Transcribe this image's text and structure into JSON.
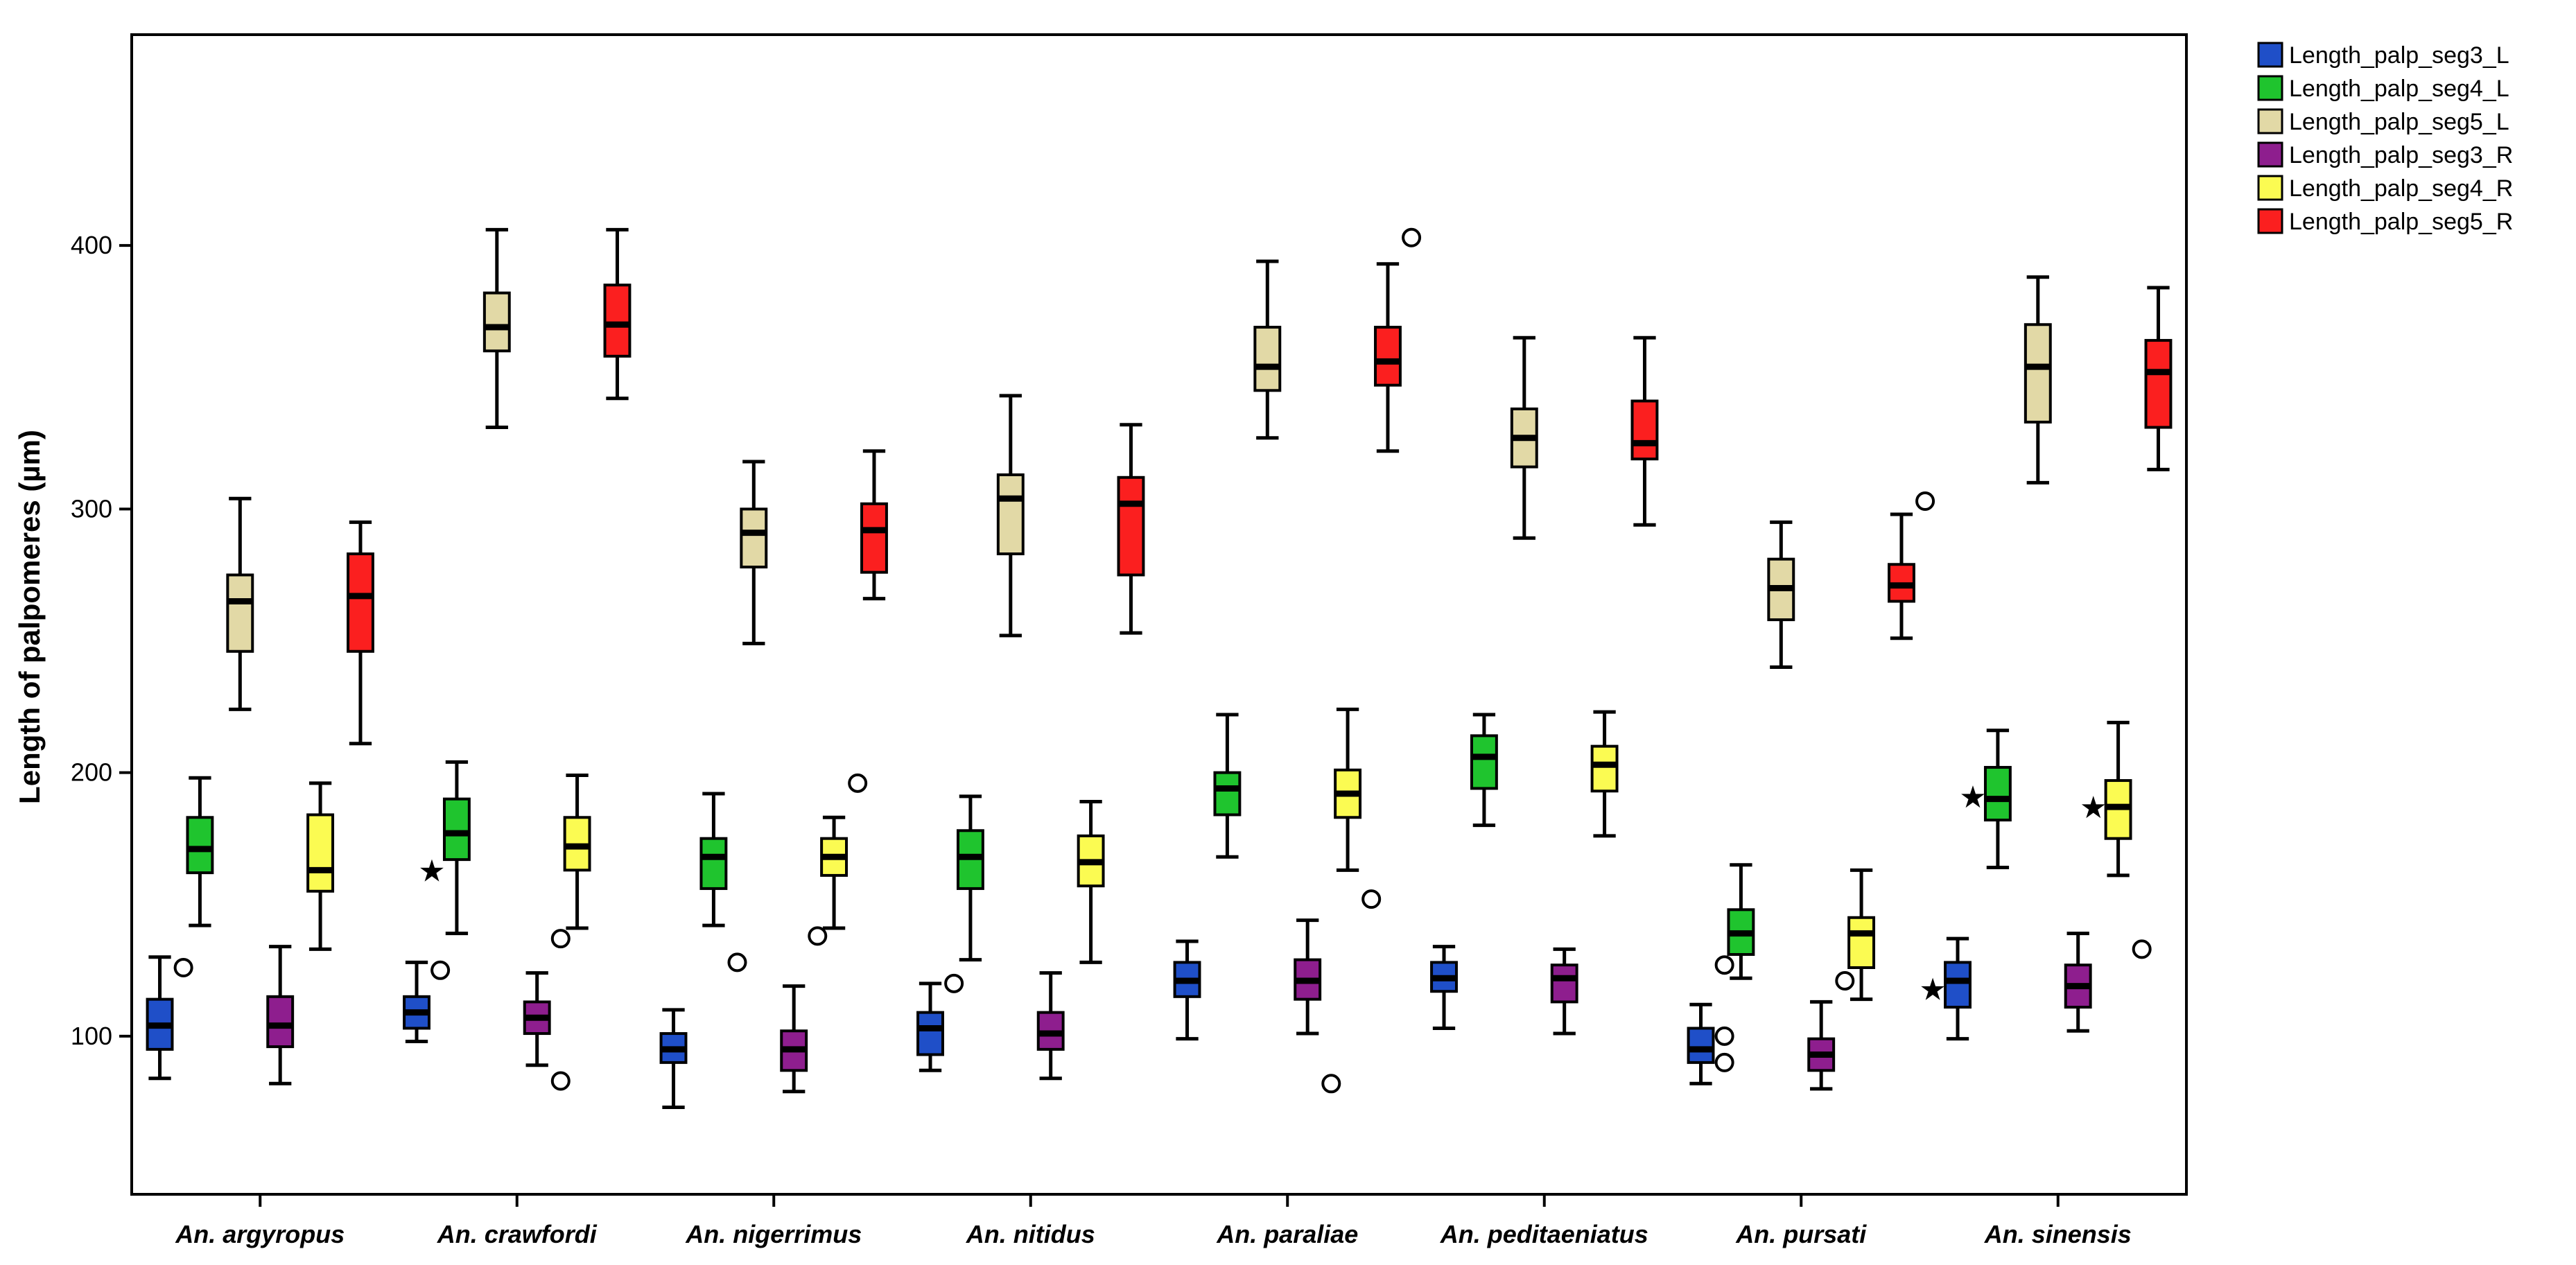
{
  "chart_data": {
    "type": "boxplot",
    "ylabel": "Length of palpomeres (µm)",
    "ylim": [
      40,
      480
    ],
    "yticks": [
      100,
      200,
      300,
      400
    ],
    "legend_position": "top-right",
    "categories": [
      "An. argyropus",
      "An. crawfordi",
      "An. nigerrimus",
      "An. nitidus",
      "An. paraliae",
      "An. peditaeniatus",
      "An. pursati",
      "An. sinensis"
    ],
    "series": [
      {
        "name": "Length_palp_seg3_L",
        "color": "#1f4fc8",
        "boxes": [
          {
            "min": 84,
            "q1": 95,
            "median": 104,
            "q3": 114,
            "max": 130,
            "outliers": [
              126
            ],
            "extremes": []
          },
          {
            "min": 98,
            "q1": 103,
            "median": 109,
            "q3": 115,
            "max": 128,
            "outliers": [
              125
            ],
            "extremes": []
          },
          {
            "min": 73,
            "q1": 90,
            "median": 95,
            "q3": 101,
            "max": 110,
            "outliers": [],
            "extremes": []
          },
          {
            "min": 87,
            "q1": 93,
            "median": 103,
            "q3": 109,
            "max": 120,
            "outliers": [
              120
            ],
            "extremes": []
          },
          {
            "min": 99,
            "q1": 115,
            "median": 121,
            "q3": 128,
            "max": 136,
            "outliers": [],
            "extremes": []
          },
          {
            "min": 103,
            "q1": 117,
            "median": 122,
            "q3": 128,
            "max": 134,
            "outliers": [],
            "extremes": []
          },
          {
            "min": 82,
            "q1": 90,
            "median": 95,
            "q3": 103,
            "max": 112,
            "outliers": [
              127,
              100,
              90
            ],
            "extremes": []
          },
          {
            "min": 99,
            "q1": 111,
            "median": 121,
            "q3": 128,
            "max": 137,
            "outliers": [],
            "extremes": [
              118
            ]
          }
        ]
      },
      {
        "name": "Length_palp_seg4_L",
        "color": "#1fc42e",
        "boxes": [
          {
            "min": 142,
            "q1": 162,
            "median": 171,
            "q3": 183,
            "max": 198,
            "outliers": [],
            "extremes": []
          },
          {
            "min": 139,
            "q1": 167,
            "median": 177,
            "q3": 190,
            "max": 204,
            "outliers": [],
            "extremes": [
              163
            ]
          },
          {
            "min": 142,
            "q1": 156,
            "median": 168,
            "q3": 175,
            "max": 192,
            "outliers": [
              128
            ],
            "extremes": []
          },
          {
            "min": 129,
            "q1": 156,
            "median": 168,
            "q3": 178,
            "max": 191,
            "outliers": [],
            "extremes": []
          },
          {
            "min": 168,
            "q1": 184,
            "median": 194,
            "q3": 200,
            "max": 222,
            "outliers": [],
            "extremes": []
          },
          {
            "min": 180,
            "q1": 194,
            "median": 206,
            "q3": 214,
            "max": 222,
            "outliers": [],
            "extremes": []
          },
          {
            "min": 122,
            "q1": 131,
            "median": 139,
            "q3": 148,
            "max": 165,
            "outliers": [],
            "extremes": []
          },
          {
            "min": 164,
            "q1": 182,
            "median": 190,
            "q3": 202,
            "max": 216,
            "outliers": [],
            "extremes": [
              191
            ]
          }
        ]
      },
      {
        "name": "Length_palp_seg5_L",
        "color": "#e2d9a6",
        "boxes": [
          {
            "min": 224,
            "q1": 246,
            "median": 265,
            "q3": 275,
            "max": 304,
            "outliers": [],
            "extremes": []
          },
          {
            "min": 331,
            "q1": 360,
            "median": 369,
            "q3": 382,
            "max": 406,
            "outliers": [],
            "extremes": []
          },
          {
            "min": 249,
            "q1": 278,
            "median": 291,
            "q3": 300,
            "max": 318,
            "outliers": [],
            "extremes": []
          },
          {
            "min": 252,
            "q1": 283,
            "median": 304,
            "q3": 313,
            "max": 343,
            "outliers": [],
            "extremes": []
          },
          {
            "min": 327,
            "q1": 345,
            "median": 354,
            "q3": 369,
            "max": 394,
            "outliers": [],
            "extremes": []
          },
          {
            "min": 289,
            "q1": 316,
            "median": 327,
            "q3": 338,
            "max": 365,
            "outliers": [],
            "extremes": []
          },
          {
            "min": 240,
            "q1": 258,
            "median": 270,
            "q3": 281,
            "max": 295,
            "outliers": [],
            "extremes": []
          },
          {
            "min": 310,
            "q1": 333,
            "median": 354,
            "q3": 370,
            "max": 388,
            "outliers": [],
            "extremes": []
          }
        ]
      },
      {
        "name": "Length_palp_seg3_R",
        "color": "#8e1e8e",
        "boxes": [
          {
            "min": 82,
            "q1": 96,
            "median": 104,
            "q3": 115,
            "max": 134,
            "outliers": [],
            "extremes": []
          },
          {
            "min": 89,
            "q1": 101,
            "median": 107,
            "q3": 113,
            "max": 124,
            "outliers": [
              137,
              83
            ],
            "extremes": []
          },
          {
            "min": 79,
            "q1": 87,
            "median": 95,
            "q3": 102,
            "max": 119,
            "outliers": [
              138
            ],
            "extremes": []
          },
          {
            "min": 84,
            "q1": 95,
            "median": 101,
            "q3": 109,
            "max": 124,
            "outliers": [],
            "extremes": []
          },
          {
            "min": 101,
            "q1": 114,
            "median": 121,
            "q3": 129,
            "max": 144,
            "outliers": [
              82
            ],
            "extremes": []
          },
          {
            "min": 101,
            "q1": 113,
            "median": 122,
            "q3": 127,
            "max": 133,
            "outliers": [],
            "extremes": []
          },
          {
            "min": 80,
            "q1": 87,
            "median": 93,
            "q3": 99,
            "max": 113,
            "outliers": [
              121
            ],
            "extremes": []
          },
          {
            "min": 102,
            "q1": 111,
            "median": 119,
            "q3": 127,
            "max": 139,
            "outliers": [],
            "extremes": []
          }
        ]
      },
      {
        "name": "Length_palp_seg4_R",
        "color": "#fbfb52",
        "boxes": [
          {
            "min": 133,
            "q1": 155,
            "median": 163,
            "q3": 184,
            "max": 196,
            "outliers": [],
            "extremes": []
          },
          {
            "min": 141,
            "q1": 163,
            "median": 172,
            "q3": 183,
            "max": 199,
            "outliers": [],
            "extremes": []
          },
          {
            "min": 141,
            "q1": 161,
            "median": 168,
            "q3": 175,
            "max": 183,
            "outliers": [
              196
            ],
            "extremes": []
          },
          {
            "min": 128,
            "q1": 157,
            "median": 166,
            "q3": 176,
            "max": 189,
            "outliers": [],
            "extremes": []
          },
          {
            "min": 163,
            "q1": 183,
            "median": 192,
            "q3": 201,
            "max": 224,
            "outliers": [
              152
            ],
            "extremes": []
          },
          {
            "min": 176,
            "q1": 193,
            "median": 203,
            "q3": 210,
            "max": 223,
            "outliers": [],
            "extremes": []
          },
          {
            "min": 114,
            "q1": 126,
            "median": 139,
            "q3": 145,
            "max": 163,
            "outliers": [],
            "extremes": []
          },
          {
            "min": 161,
            "q1": 175,
            "median": 187,
            "q3": 197,
            "max": 219,
            "outliers": [
              133
            ],
            "extremes": [
              187
            ]
          }
        ]
      },
      {
        "name": "Length_palp_seg5_R",
        "color": "#fb1f1f",
        "boxes": [
          {
            "min": 211,
            "q1": 246,
            "median": 267,
            "q3": 283,
            "max": 295,
            "outliers": [],
            "extremes": []
          },
          {
            "min": 342,
            "q1": 358,
            "median": 370,
            "q3": 385,
            "max": 406,
            "outliers": [],
            "extremes": []
          },
          {
            "min": 266,
            "q1": 276,
            "median": 292,
            "q3": 302,
            "max": 322,
            "outliers": [],
            "extremes": []
          },
          {
            "min": 253,
            "q1": 275,
            "median": 302,
            "q3": 312,
            "max": 332,
            "outliers": [],
            "extremes": []
          },
          {
            "min": 322,
            "q1": 347,
            "median": 356,
            "q3": 369,
            "max": 393,
            "outliers": [
              403
            ],
            "extremes": []
          },
          {
            "min": 294,
            "q1": 319,
            "median": 325,
            "q3": 341,
            "max": 365,
            "outliers": [],
            "extremes": []
          },
          {
            "min": 251,
            "q1": 265,
            "median": 271,
            "q3": 279,
            "max": 298,
            "outliers": [
              303
            ],
            "extremes": []
          },
          {
            "min": 315,
            "q1": 331,
            "median": 352,
            "q3": 364,
            "max": 384,
            "outliers": [],
            "extremes": []
          }
        ]
      }
    ]
  }
}
